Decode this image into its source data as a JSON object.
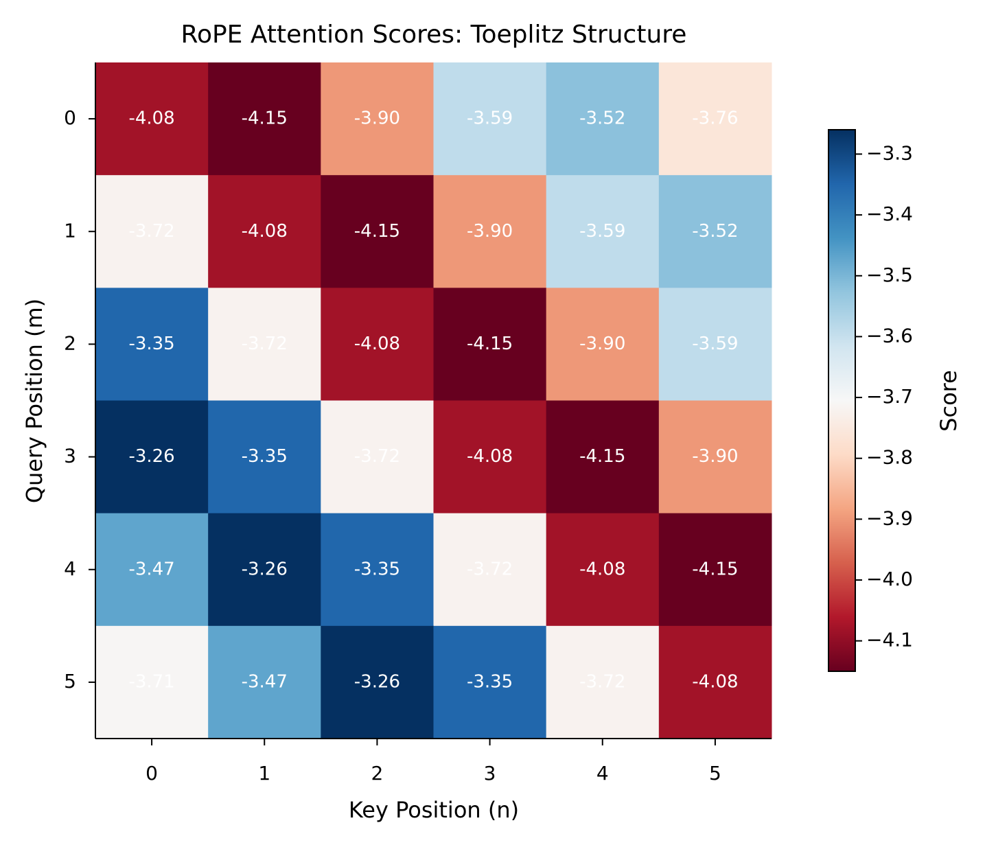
{
  "chart_data": {
    "type": "heatmap",
    "title": "RoPE Attention Scores: Toeplitz Structure",
    "x_label": "Key Position (n)",
    "y_label": "Query Position (m)",
    "x": [
      0,
      1,
      2,
      3,
      4,
      5
    ],
    "y": [
      0,
      1,
      2,
      3,
      4,
      5
    ],
    "values": [
      [
        -4.08,
        -4.15,
        -3.9,
        -3.59,
        -3.52,
        -3.76
      ],
      [
        -3.72,
        -4.08,
        -4.15,
        -3.9,
        -3.59,
        -3.52
      ],
      [
        -3.35,
        -3.72,
        -4.08,
        -4.15,
        -3.9,
        -3.59
      ],
      [
        -3.26,
        -3.35,
        -3.72,
        -4.08,
        -4.15,
        -3.9
      ],
      [
        -3.47,
        -3.26,
        -3.35,
        -3.72,
        -4.08,
        -4.15
      ],
      [
        -3.71,
        -3.47,
        -3.26,
        -3.35,
        -3.72,
        -4.08
      ]
    ],
    "value_labels": [
      [
        "-4.08",
        "-4.15",
        "-3.90",
        "-3.59",
        "-3.52",
        "-3.76"
      ],
      [
        "-3.72",
        "-4.08",
        "-4.15",
        "-3.90",
        "-3.59",
        "-3.52"
      ],
      [
        "-3.35",
        "-3.72",
        "-4.08",
        "-4.15",
        "-3.90",
        "-3.59"
      ],
      [
        "-3.26",
        "-3.35",
        "-3.72",
        "-4.08",
        "-4.15",
        "-3.90"
      ],
      [
        "-3.47",
        "-3.26",
        "-3.35",
        "-3.72",
        "-4.08",
        "-4.15"
      ],
      [
        "-3.71",
        "-3.47",
        "-3.26",
        "-3.35",
        "-3.72",
        "-4.08"
      ]
    ],
    "colormap": [
      "#67001f",
      "#b2182b",
      "#d6604d",
      "#f4a582",
      "#fddbc7",
      "#f7f7f7",
      "#d1e5f0",
      "#92c5de",
      "#4393c3",
      "#2166ac",
      "#053061"
    ],
    "clim": [
      -4.15,
      -3.26
    ],
    "colorbar_label": "Score",
    "colorbar_ticks": [
      {
        "value": -3.3,
        "label": "−3.3"
      },
      {
        "value": -3.4,
        "label": "−3.4"
      },
      {
        "value": -3.5,
        "label": "−3.5"
      },
      {
        "value": -3.6,
        "label": "−3.6"
      },
      {
        "value": -3.7,
        "label": "−3.7"
      },
      {
        "value": -3.8,
        "label": "−3.8"
      },
      {
        "value": -3.9,
        "label": "−3.9"
      },
      {
        "value": -4.0,
        "label": "−4.0"
      },
      {
        "value": -4.1,
        "label": "−4.1"
      }
    ]
  }
}
